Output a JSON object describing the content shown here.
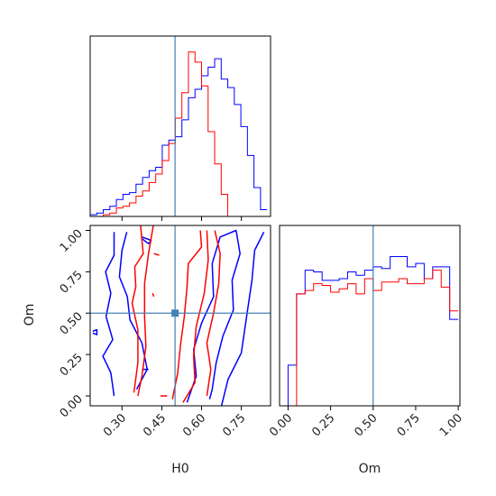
{
  "colors": {
    "series_a": "#0000ff",
    "series_b": "#ff0000",
    "truth": "#4682b4",
    "frame": "#000000"
  },
  "chart_data": [
    {
      "panel": "H0 marginal",
      "type": "histogram",
      "x_param": "H0",
      "xlim": [
        0.18,
        0.86
      ],
      "x_ticks": [
        "0.30",
        "0.45",
        "0.60",
        "0.75"
      ],
      "truth_x": 0.5,
      "bin_edges": [
        0.18,
        0.2047,
        0.2294,
        0.2541,
        0.2788,
        0.3035,
        0.3282,
        0.3529,
        0.3776,
        0.4023,
        0.427,
        0.4517,
        0.4764,
        0.5011,
        0.5258,
        0.5505,
        0.5752,
        0.5999,
        0.6246,
        0.6493,
        0.674,
        0.6987,
        0.7234,
        0.7481,
        0.7728,
        0.7975,
        0.8222,
        0.8469
      ],
      "series": [
        {
          "color": "blue",
          "heights": [
            0.01,
            0.02,
            0.04,
            0.06,
            0.1,
            0.13,
            0.14,
            0.19,
            0.23,
            0.27,
            0.29,
            0.42,
            0.45,
            0.47,
            0.57,
            0.7,
            0.75,
            0.83,
            0.88,
            0.93,
            0.81,
            0.76,
            0.66,
            0.53,
            0.36,
            0.17,
            0.04
          ]
        },
        {
          "color": "red",
          "heights": [
            0.0,
            0.0,
            0.01,
            0.02,
            0.05,
            0.06,
            0.08,
            0.12,
            0.15,
            0.2,
            0.25,
            0.33,
            0.43,
            0.58,
            0.73,
            0.97,
            0.91,
            0.77,
            0.5,
            0.31,
            0.13,
            0.0,
            0.0,
            0.0,
            0.0,
            0.0,
            0.0
          ]
        }
      ]
    },
    {
      "panel": "Om marginal",
      "type": "histogram",
      "x_param": "Om",
      "xlim": [
        -0.05,
        1.01
      ],
      "x_ticks": [
        "0.00",
        "0.25",
        "0.50",
        "0.75",
        "1.00"
      ],
      "xlabel": "Om",
      "truth_x": 0.5,
      "bin_edges": [
        -0.05,
        0.0,
        0.05,
        0.1,
        0.15,
        0.2,
        0.25,
        0.3,
        0.35,
        0.4,
        0.45,
        0.5,
        0.55,
        0.6,
        0.65,
        0.7,
        0.75,
        0.8,
        0.85,
        0.9,
        0.95,
        1.0
      ],
      "series": [
        {
          "color": "blue",
          "heights": [
            0.0,
            0.24,
            0.66,
            0.8,
            0.79,
            0.74,
            0.74,
            0.75,
            0.79,
            0.77,
            0.8,
            0.82,
            0.81,
            0.88,
            0.88,
            0.82,
            0.84,
            0.75,
            0.82,
            0.82,
            0.51
          ]
        },
        {
          "color": "red",
          "heights": [
            0.0,
            0.0,
            0.66,
            0.68,
            0.72,
            0.71,
            0.67,
            0.69,
            0.72,
            0.66,
            0.75,
            0.68,
            0.73,
            0.73,
            0.75,
            0.72,
            0.72,
            0.75,
            0.8,
            0.7,
            0.56
          ]
        }
      ]
    },
    {
      "panel": "H0 vs Om joint",
      "type": "contour",
      "x_param": "H0",
      "y_param": "Om",
      "xlim": [
        0.18,
        0.86
      ],
      "ylim": [
        -0.06,
        1.03
      ],
      "x_ticks": [
        "0.30",
        "0.45",
        "0.60",
        "0.75"
      ],
      "y_ticks": [
        "0.00",
        "0.25",
        "0.50",
        "0.75",
        "1.00"
      ],
      "xlabel": "H0",
      "ylabel": "Om",
      "truth": [
        0.5,
        0.5
      ],
      "series": [
        {
          "color": "blue",
          "contours": [
            [
              [
                0.355,
                0.04
              ],
              [
                0.395,
                0.16
              ],
              [
                0.375,
                0.32
              ],
              [
                0.33,
                0.46
              ],
              [
                0.32,
                0.6
              ],
              [
                0.29,
                0.72
              ],
              [
                0.3,
                0.88
              ],
              [
                0.318,
                0.99
              ]
            ],
            [
              [
                0.27,
                0.99
              ],
              [
                0.27,
                0.85
              ],
              [
                0.238,
                0.75
              ],
              [
                0.258,
                0.62
              ],
              [
                0.24,
                0.48
              ],
              [
                0.265,
                0.34
              ],
              [
                0.228,
                0.24
              ],
              [
                0.258,
                0.14
              ],
              [
                0.27,
                0.0
              ]
            ],
            [
              [
                0.545,
                -0.04
              ],
              [
                0.58,
                0.12
              ],
              [
                0.57,
                0.28
              ],
              [
                0.6,
                0.44
              ],
              [
                0.645,
                0.6
              ],
              [
                0.64,
                0.8
              ],
              [
                0.67,
                0.96
              ],
              [
                0.73,
                1.0
              ],
              [
                0.745,
                0.86
              ],
              [
                0.715,
                0.7
              ],
              [
                0.72,
                0.52
              ],
              [
                0.68,
                0.36
              ],
              [
                0.655,
                0.2
              ],
              [
                0.64,
                0.04
              ],
              [
                0.63,
                -0.02
              ]
            ],
            [
              [
                0.675,
                -0.06
              ],
              [
                0.7,
                0.1
              ],
              [
                0.75,
                0.26
              ],
              [
                0.77,
                0.48
              ],
              [
                0.79,
                0.7
              ],
              [
                0.8,
                0.88
              ],
              [
                0.835,
                0.99
              ]
            ],
            [
              [
                0.19,
                0.39
              ],
              [
                0.205,
                0.4
              ],
              [
                0.205,
                0.37
              ],
              [
                0.19,
                0.38
              ]
            ],
            [
              [
                0.375,
                0.96
              ],
              [
                0.41,
                0.94
              ],
              [
                0.4,
                0.92
              ],
              [
                0.375,
                0.95
              ]
            ],
            [
              [
                0.375,
                0.16
              ],
              [
                0.4,
                0.16
              ]
            ]
          ]
        },
        {
          "color": "red",
          "contours": [
            [
              [
                0.345,
                0.02
              ],
              [
                0.36,
                0.2
              ],
              [
                0.36,
                0.4
              ],
              [
                0.338,
                0.56
              ],
              [
                0.352,
                0.66
              ],
              [
                0.348,
                0.78
              ],
              [
                0.38,
                0.86
              ],
              [
                0.37,
                1.03
              ]
            ],
            [
              [
                0.418,
                1.03
              ],
              [
                0.4,
                0.86
              ],
              [
                0.385,
                0.68
              ],
              [
                0.385,
                0.48
              ],
              [
                0.39,
                0.3
              ],
              [
                0.375,
                0.12
              ],
              [
                0.36,
                0.0
              ]
            ],
            [
              [
                0.49,
                -0.02
              ],
              [
                0.51,
                0.14
              ],
              [
                0.52,
                0.3
              ],
              [
                0.535,
                0.48
              ],
              [
                0.545,
                0.66
              ],
              [
                0.55,
                0.8
              ],
              [
                0.6,
                0.9
              ],
              [
                0.595,
                1.0
              ]
            ],
            [
              [
                0.62,
                1.0
              ],
              [
                0.625,
                0.82
              ],
              [
                0.61,
                0.62
              ],
              [
                0.58,
                0.42
              ],
              [
                0.57,
                0.24
              ],
              [
                0.575,
                0.08
              ],
              [
                0.545,
                0.0
              ],
              [
                0.53,
                -0.04
              ]
            ],
            [
              [
                0.62,
                0.0
              ],
              [
                0.635,
                0.16
              ],
              [
                0.62,
                0.32
              ],
              [
                0.645,
                0.5
              ],
              [
                0.665,
                0.68
              ],
              [
                0.67,
                0.86
              ],
              [
                0.65,
                1.0
              ]
            ],
            [
              [
                0.42,
                0.86
              ],
              [
                0.44,
                0.85
              ]
            ],
            [
              [
                0.415,
                0.62
              ],
              [
                0.42,
                0.6
              ]
            ],
            [
              [
                0.445,
                0.0
              ],
              [
                0.47,
                0.0
              ]
            ]
          ]
        }
      ]
    }
  ]
}
